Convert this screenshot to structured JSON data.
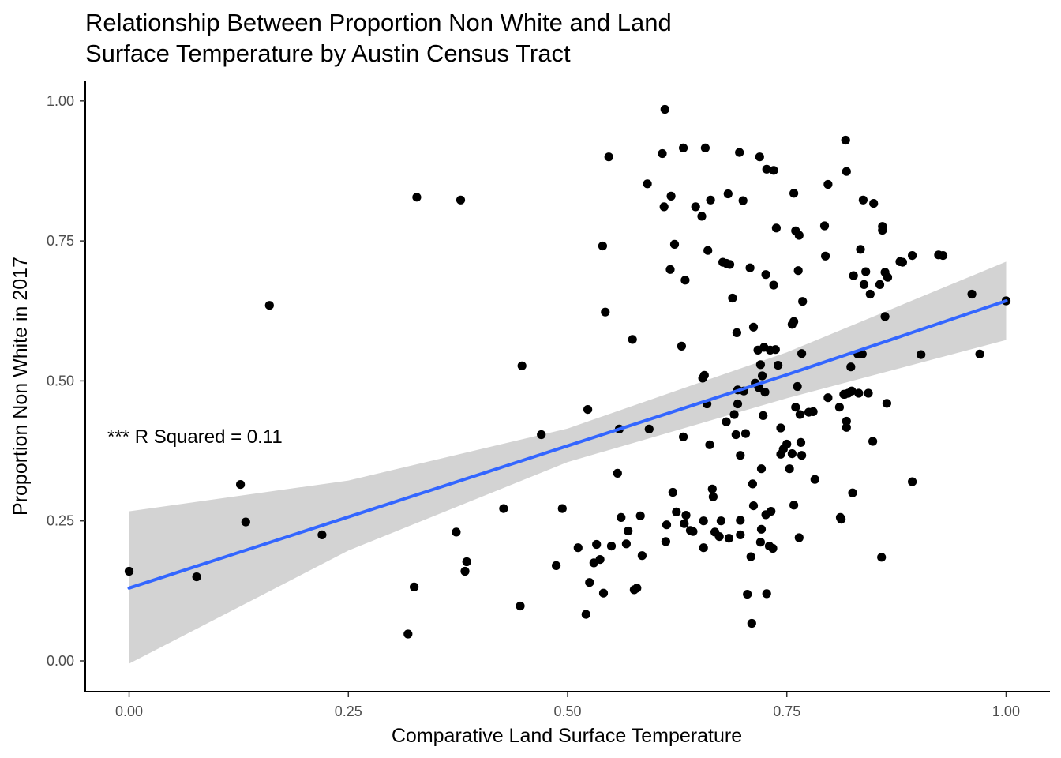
{
  "chart_data": {
    "type": "scatter",
    "title_lines": [
      "Relationship Between Proportion Non White and Land",
      "Surface Temperature by Austin Census Tract"
    ],
    "xlabel": "Comparative Land Surface Temperature",
    "ylabel": "Proportion Non White in 2017",
    "xlim": [
      -0.05,
      1.05
    ],
    "ylim": [
      -0.055,
      1.035
    ],
    "x_ticks": [
      0.0,
      0.25,
      0.5,
      0.75,
      1.0
    ],
    "x_tick_labels": [
      "0.00",
      "0.25",
      "0.50",
      "0.75",
      "1.00"
    ],
    "y_ticks": [
      0.0,
      0.25,
      0.5,
      0.75,
      1.0
    ],
    "y_tick_labels": [
      "0.00",
      "0.25",
      "0.50",
      "0.75",
      "1.00"
    ],
    "grid": false,
    "annotation": {
      "text": "*** R Squared = 0.11",
      "x": 0.0,
      "y": 0.4
    },
    "point_color": "#000000",
    "regression": {
      "color": "#3366FF",
      "band_color": "#d3d3d3",
      "x": [
        0.0,
        0.25,
        0.5,
        0.75,
        1.0
      ],
      "fit": [
        0.13,
        0.257,
        0.384,
        0.511,
        0.643
      ],
      "lower": [
        -0.005,
        0.197,
        0.355,
        0.469,
        0.573
      ],
      "upper": [
        0.267,
        0.322,
        0.415,
        0.551,
        0.713
      ]
    },
    "points": [
      [
        0.0,
        0.16
      ],
      [
        0.077,
        0.15
      ],
      [
        0.127,
        0.315
      ],
      [
        0.133,
        0.248
      ],
      [
        0.16,
        0.635
      ],
      [
        0.22,
        0.225
      ],
      [
        0.318,
        0.048
      ],
      [
        0.325,
        0.132
      ],
      [
        0.328,
        0.828
      ],
      [
        0.373,
        0.23
      ],
      [
        0.378,
        0.823
      ],
      [
        0.383,
        0.16
      ],
      [
        0.385,
        0.177
      ],
      [
        0.427,
        0.272
      ],
      [
        0.446,
        0.098
      ],
      [
        0.448,
        0.527
      ],
      [
        0.47,
        0.404
      ],
      [
        0.487,
        0.17
      ],
      [
        0.494,
        0.272
      ],
      [
        0.512,
        0.202
      ],
      [
        0.521,
        0.083
      ],
      [
        0.523,
        0.449
      ],
      [
        0.525,
        0.14
      ],
      [
        0.53,
        0.175
      ],
      [
        0.533,
        0.208
      ],
      [
        0.537,
        0.181
      ],
      [
        0.54,
        0.741
      ],
      [
        0.541,
        0.121
      ],
      [
        0.543,
        0.623
      ],
      [
        0.547,
        0.9
      ],
      [
        0.55,
        0.205
      ],
      [
        0.557,
        0.335
      ],
      [
        0.559,
        0.414
      ],
      [
        0.561,
        0.256
      ],
      [
        0.567,
        0.209
      ],
      [
        0.569,
        0.232
      ],
      [
        0.574,
        0.574
      ],
      [
        0.576,
        0.127
      ],
      [
        0.579,
        0.13
      ],
      [
        0.583,
        0.259
      ],
      [
        0.585,
        0.188
      ],
      [
        0.591,
        0.852
      ],
      [
        0.593,
        0.414
      ],
      [
        0.608,
        0.906
      ],
      [
        0.61,
        0.811
      ],
      [
        0.611,
        0.985
      ],
      [
        0.612,
        0.213
      ],
      [
        0.613,
        0.243
      ],
      [
        0.617,
        0.699
      ],
      [
        0.618,
        0.83
      ],
      [
        0.62,
        0.301
      ],
      [
        0.622,
        0.744
      ],
      [
        0.624,
        0.266
      ],
      [
        0.63,
        0.562
      ],
      [
        0.632,
        0.916
      ],
      [
        0.632,
        0.4
      ],
      [
        0.633,
        0.245
      ],
      [
        0.634,
        0.68
      ],
      [
        0.635,
        0.26
      ],
      [
        0.64,
        0.233
      ],
      [
        0.643,
        0.231
      ],
      [
        0.646,
        0.811
      ],
      [
        0.653,
        0.794
      ],
      [
        0.654,
        0.505
      ],
      [
        0.655,
        0.25
      ],
      [
        0.655,
        0.202
      ],
      [
        0.656,
        0.51
      ],
      [
        0.657,
        0.916
      ],
      [
        0.659,
        0.459
      ],
      [
        0.66,
        0.733
      ],
      [
        0.662,
        0.386
      ],
      [
        0.663,
        0.823
      ],
      [
        0.665,
        0.307
      ],
      [
        0.666,
        0.293
      ],
      [
        0.668,
        0.23
      ],
      [
        0.673,
        0.222
      ],
      [
        0.675,
        0.25
      ],
      [
        0.677,
        0.712
      ],
      [
        0.681,
        0.71
      ],
      [
        0.681,
        0.427
      ],
      [
        0.683,
        0.834
      ],
      [
        0.684,
        0.219
      ],
      [
        0.685,
        0.708
      ],
      [
        0.688,
        0.648
      ],
      [
        0.69,
        0.44
      ],
      [
        0.692,
        0.404
      ],
      [
        0.693,
        0.586
      ],
      [
        0.694,
        0.484
      ],
      [
        0.694,
        0.459
      ],
      [
        0.696,
        0.908
      ],
      [
        0.697,
        0.367
      ],
      [
        0.697,
        0.251
      ],
      [
        0.697,
        0.225
      ],
      [
        0.7,
        0.822
      ],
      [
        0.701,
        0.482
      ],
      [
        0.703,
        0.406
      ],
      [
        0.705,
        0.119
      ],
      [
        0.708,
        0.702
      ],
      [
        0.709,
        0.186
      ],
      [
        0.71,
        0.067
      ],
      [
        0.711,
        0.316
      ],
      [
        0.712,
        0.277
      ],
      [
        0.712,
        0.596
      ],
      [
        0.714,
        0.496
      ],
      [
        0.717,
        0.555
      ],
      [
        0.718,
        0.488
      ],
      [
        0.719,
        0.9
      ],
      [
        0.72,
        0.212
      ],
      [
        0.72,
        0.529
      ],
      [
        0.721,
        0.343
      ],
      [
        0.721,
        0.235
      ],
      [
        0.722,
        0.509
      ],
      [
        0.723,
        0.438
      ],
      [
        0.724,
        0.56
      ],
      [
        0.725,
        0.48
      ],
      [
        0.726,
        0.261
      ],
      [
        0.726,
        0.69
      ],
      [
        0.727,
        0.878
      ],
      [
        0.727,
        0.12
      ],
      [
        0.73,
        0.205
      ],
      [
        0.731,
        0.555
      ],
      [
        0.732,
        0.267
      ],
      [
        0.734,
        0.201
      ],
      [
        0.735,
        0.876
      ],
      [
        0.735,
        0.671
      ],
      [
        0.737,
        0.556
      ],
      [
        0.738,
        0.773
      ],
      [
        0.74,
        0.528
      ],
      [
        0.743,
        0.416
      ],
      [
        0.743,
        0.369
      ],
      [
        0.746,
        0.378
      ],
      [
        0.75,
        0.387
      ],
      [
        0.753,
        0.343
      ],
      [
        0.756,
        0.601
      ],
      [
        0.756,
        0.37
      ],
      [
        0.758,
        0.606
      ],
      [
        0.758,
        0.278
      ],
      [
        0.758,
        0.835
      ],
      [
        0.76,
        0.453
      ],
      [
        0.76,
        0.768
      ],
      [
        0.762,
        0.49
      ],
      [
        0.763,
        0.697
      ],
      [
        0.764,
        0.76
      ],
      [
        0.764,
        0.22
      ],
      [
        0.765,
        0.44
      ],
      [
        0.766,
        0.39
      ],
      [
        0.767,
        0.549
      ],
      [
        0.767,
        0.367
      ],
      [
        0.768,
        0.642
      ],
      [
        0.775,
        0.444
      ],
      [
        0.78,
        0.445
      ],
      [
        0.782,
        0.324
      ],
      [
        0.793,
        0.777
      ],
      [
        0.794,
        0.723
      ],
      [
        0.797,
        0.47
      ],
      [
        0.797,
        0.851
      ],
      [
        0.81,
        0.453
      ],
      [
        0.811,
        0.256
      ],
      [
        0.812,
        0.253
      ],
      [
        0.815,
        0.476
      ],
      [
        0.816,
        0.476
      ],
      [
        0.817,
        0.93
      ],
      [
        0.818,
        0.874
      ],
      [
        0.818,
        0.428
      ],
      [
        0.818,
        0.417
      ],
      [
        0.82,
        0.478
      ],
      [
        0.823,
        0.525
      ],
      [
        0.824,
        0.482
      ],
      [
        0.825,
        0.3
      ],
      [
        0.826,
        0.688
      ],
      [
        0.831,
        0.548
      ],
      [
        0.832,
        0.478
      ],
      [
        0.834,
        0.735
      ],
      [
        0.836,
        0.548
      ],
      [
        0.837,
        0.823
      ],
      [
        0.838,
        0.672
      ],
      [
        0.84,
        0.695
      ],
      [
        0.843,
        0.478
      ],
      [
        0.845,
        0.655
      ],
      [
        0.848,
        0.392
      ],
      [
        0.849,
        0.817
      ],
      [
        0.856,
        0.672
      ],
      [
        0.858,
        0.185
      ],
      [
        0.859,
        0.776
      ],
      [
        0.859,
        0.769
      ],
      [
        0.862,
        0.615
      ],
      [
        0.862,
        0.694
      ],
      [
        0.864,
        0.46
      ],
      [
        0.865,
        0.685
      ],
      [
        0.879,
        0.713
      ],
      [
        0.882,
        0.712
      ],
      [
        0.893,
        0.724
      ],
      [
        0.893,
        0.32
      ],
      [
        0.903,
        0.547
      ],
      [
        0.923,
        0.725
      ],
      [
        0.928,
        0.724
      ],
      [
        0.961,
        0.655
      ],
      [
        0.97,
        0.548
      ],
      [
        1.0,
        0.643
      ]
    ]
  }
}
